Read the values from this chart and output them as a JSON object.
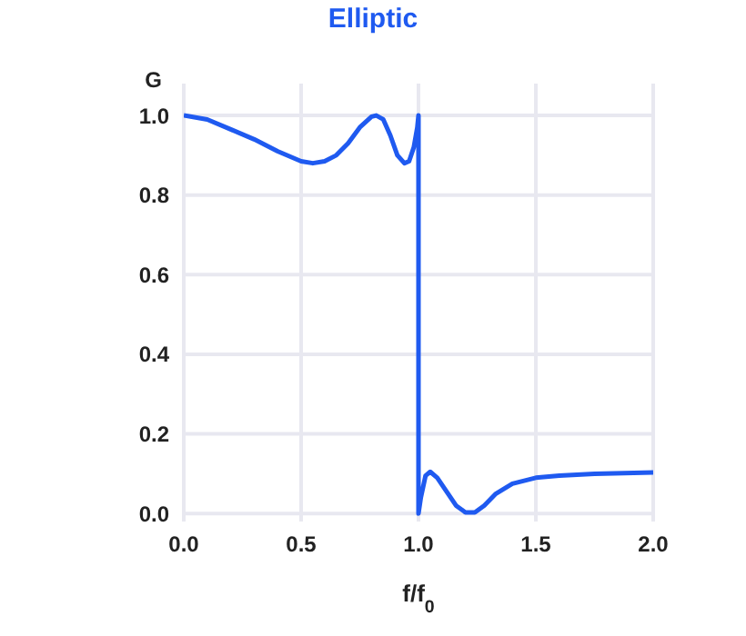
{
  "chart_data": {
    "type": "line",
    "title": "Elliptic",
    "xlabel": "f/f$_{0}$",
    "ylabel": "G",
    "xlim": [
      0,
      2
    ],
    "xticks": [
      {
        "value": 0,
        "label": "0.0"
      },
      0.5,
      {
        "value": 1,
        "label": "1.0"
      },
      1.5,
      {
        "value": 2,
        "label": "2.0"
      }
    ],
    "ylim": [
      -0.02,
      1.08
    ],
    "yticks": [
      {
        "value": 0,
        "label": "0.0"
      },
      0.2,
      0.4,
      0.6,
      0.8,
      {
        "value": 1,
        "label": "1.0"
      }
    ],
    "grid": true,
    "legend": false,
    "marker": "none",
    "line_style": "solid",
    "x": [
      0,
      0.1,
      0.2,
      0.3,
      0.4,
      0.5,
      0.55,
      0.6,
      0.65,
      0.7,
      0.75,
      0.8,
      0.82,
      0.85,
      0.88,
      0.91,
      0.94,
      0.96,
      0.98,
      0.995,
      1.0,
      1.0,
      1.01,
      1.03,
      1.05,
      1.08,
      1.12,
      1.16,
      1.2,
      1.24,
      1.28,
      1.33,
      1.4,
      1.5,
      1.6,
      1.75,
      2.0
    ],
    "series": [
      {
        "color": "#1f5af0",
        "values": [
          1.0,
          0.99,
          0.965,
          0.94,
          0.91,
          0.885,
          0.88,
          0.885,
          0.9,
          0.93,
          0.97,
          0.997,
          1.0,
          0.99,
          0.95,
          0.9,
          0.88,
          0.885,
          0.92,
          0.97,
          1.0,
          0.0,
          0.04,
          0.095,
          0.105,
          0.09,
          0.055,
          0.02,
          0.003,
          0.003,
          0.02,
          0.05,
          0.075,
          0.09,
          0.095,
          0.1,
          0.103
        ]
      }
    ]
  }
}
